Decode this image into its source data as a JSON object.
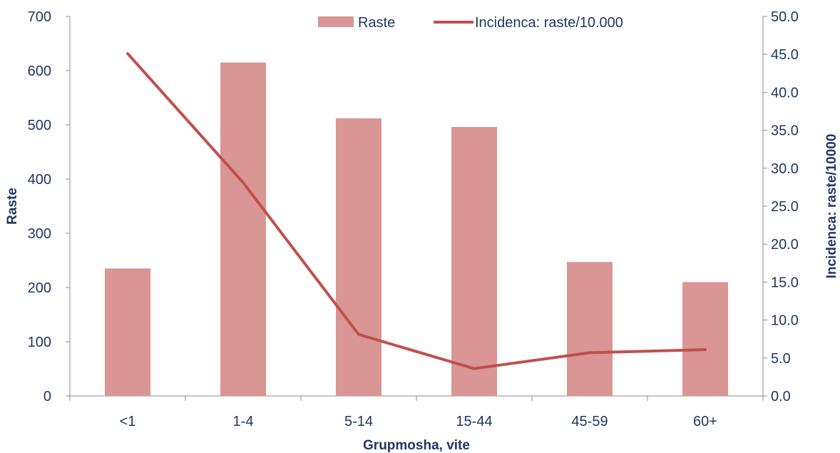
{
  "chart_data": {
    "type": "bar",
    "categories": [
      "<1",
      "1-4",
      "5-14",
      "15-44",
      "45-59",
      "60+"
    ],
    "series": [
      {
        "name": "Raste",
        "type": "bar",
        "axis": "left",
        "values": [
          235,
          615,
          512,
          496,
          247,
          210
        ],
        "color": "#d99694"
      },
      {
        "name": "Incidenca: raste/10.000",
        "type": "line",
        "axis": "right",
        "values": [
          45.1,
          28.1,
          8.1,
          3.6,
          5.7,
          6.1
        ],
        "color": "#c0504d"
      }
    ],
    "xlabel": "Grupmosha, vite",
    "ylabel": "Raste",
    "y2label": "Incidenca: raste/10000",
    "ylim": [
      0,
      700
    ],
    "y2lim": [
      0,
      50
    ],
    "yticks": [
      "0",
      "100",
      "200",
      "300",
      "400",
      "500",
      "600",
      "700"
    ],
    "y2ticks": [
      "0.0",
      "5.0",
      "10.0",
      "15.0",
      "20.0",
      "25.0",
      "30.0",
      "35.0",
      "40.0",
      "45.0",
      "50.0"
    ],
    "legend_position": "top-center",
    "grid": false
  },
  "colors": {
    "text": "#1f3864",
    "axis": "#8c8c8c"
  }
}
